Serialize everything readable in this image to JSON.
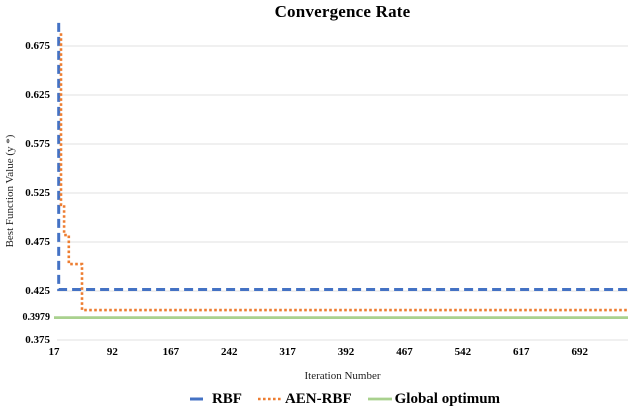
{
  "chart_data": {
    "type": "line",
    "title": "Convergence Rate",
    "xlabel": "Iteration Number",
    "ylabel": "Best Function Value (y *)",
    "x_ticks": [
      17,
      92,
      167,
      242,
      317,
      392,
      467,
      542,
      617,
      692
    ],
    "y_ticks": [
      {
        "label": "0.675",
        "value": 0.675,
        "small": false
      },
      {
        "label": "0.625",
        "value": 0.625,
        "small": false
      },
      {
        "label": "0.575",
        "value": 0.575,
        "small": false
      },
      {
        "label": "0.525",
        "value": 0.525,
        "small": false
      },
      {
        "label": "0.475",
        "value": 0.475,
        "small": false
      },
      {
        "label": "0.425",
        "value": 0.425,
        "small": false
      },
      {
        "label": "0.3979",
        "value": 0.3979,
        "small": true
      },
      {
        "label": "0.375",
        "value": 0.375,
        "small": false
      }
    ],
    "y_gridlines": [
      0.675,
      0.625,
      0.575,
      0.525,
      0.475,
      0.425,
      0.375
    ],
    "xlim": [
      17,
      754
    ],
    "ylim": [
      0.375,
      0.705
    ],
    "grid": "horizontal",
    "legend_position": "bottom",
    "gridline_color": "#E2E2E2",
    "series": [
      {
        "name": "RBF",
        "color": "#4472C4",
        "style": "dashed",
        "points": [
          [
            23,
            0.6986
          ],
          [
            23,
            0.4265
          ],
          [
            754,
            0.4265
          ]
        ]
      },
      {
        "name": "AEN-RBF",
        "color": "#ED7D31",
        "style": "dotted",
        "points": [
          [
            26,
            0.688
          ],
          [
            26,
            0.513
          ],
          [
            30,
            0.513
          ],
          [
            30,
            0.482
          ],
          [
            36,
            0.482
          ],
          [
            36,
            0.4525
          ],
          [
            53,
            0.4525
          ],
          [
            53,
            0.4055
          ],
          [
            754,
            0.4055
          ]
        ]
      },
      {
        "name": "Global optimum",
        "color": "#A9D18E",
        "style": "solid",
        "points": [
          [
            17,
            0.3979
          ],
          [
            754,
            0.3979
          ]
        ]
      }
    ]
  }
}
